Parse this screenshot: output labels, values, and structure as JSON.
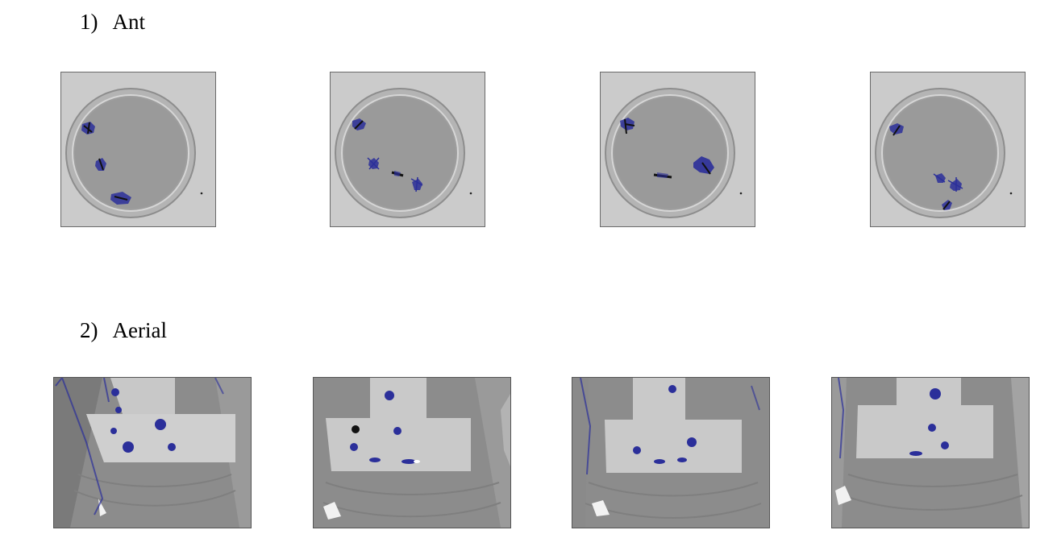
{
  "sections": [
    {
      "number": "1)",
      "label": "Ant"
    },
    {
      "number": "2)",
      "label": "Aerial"
    }
  ],
  "colors": {
    "highlight": "#2b2f9a",
    "ink": "#111111",
    "page_bg": "#ffffff"
  }
}
